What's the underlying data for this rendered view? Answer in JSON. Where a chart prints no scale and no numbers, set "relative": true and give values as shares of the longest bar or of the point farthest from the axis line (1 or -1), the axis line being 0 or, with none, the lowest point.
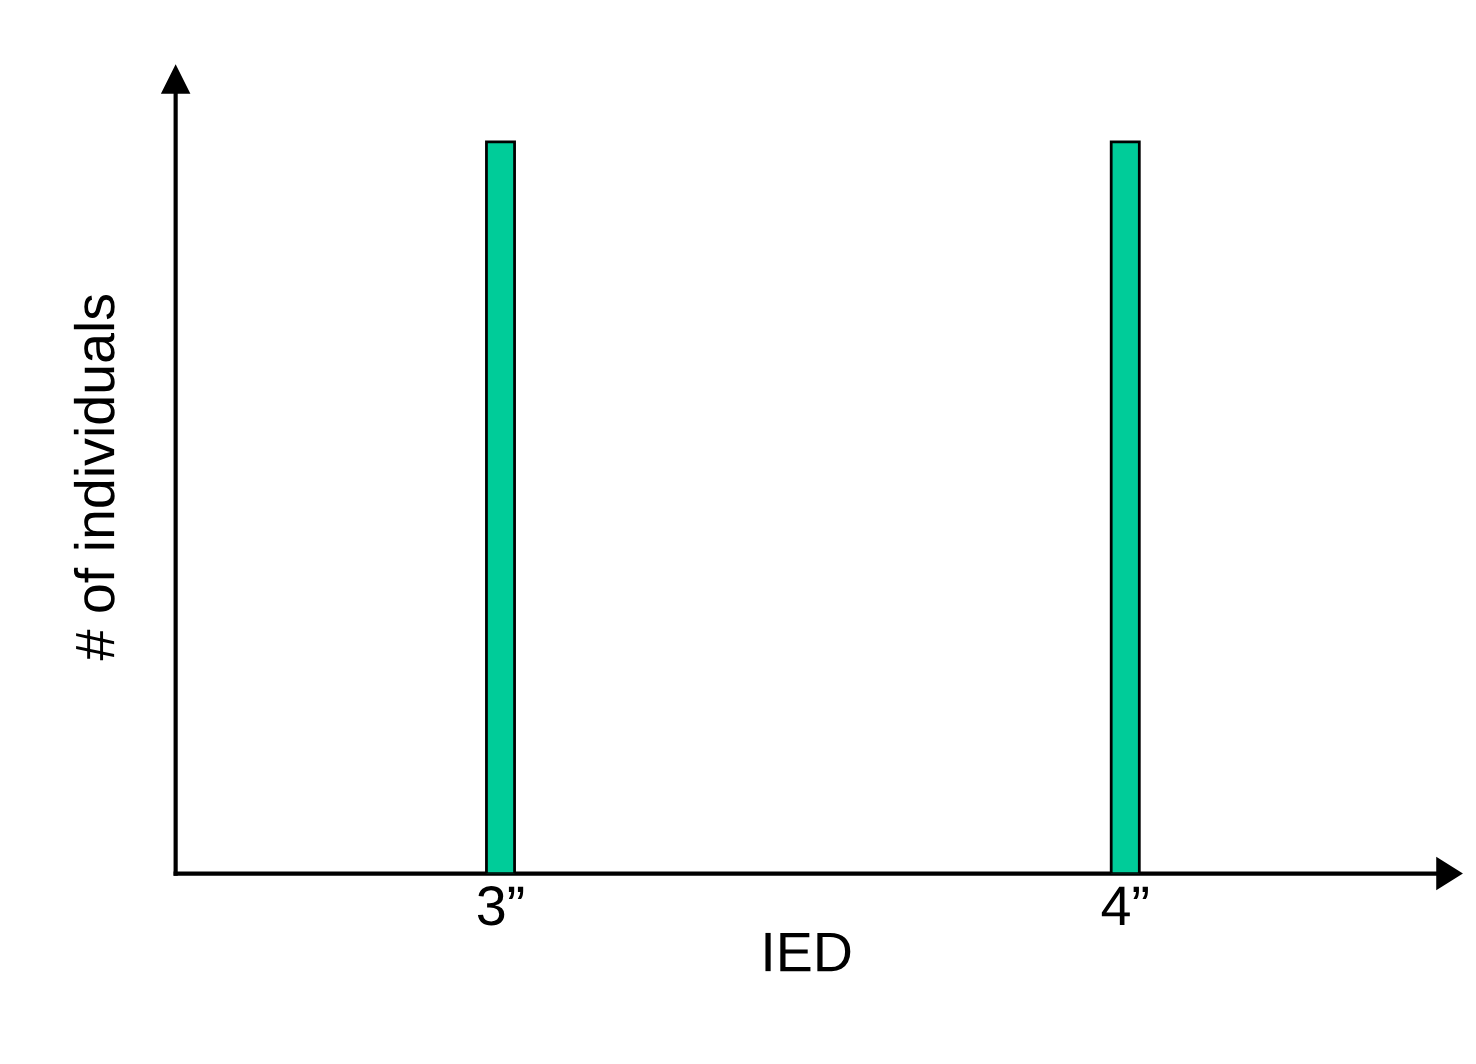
{
  "chart_data": {
    "type": "bar",
    "xlabel": "IED",
    "ylabel": "# of individuals",
    "categories": [
      "3”",
      "4”"
    ],
    "values": [
      1,
      1
    ],
    "color": "#00cc99",
    "relative": true,
    "grid": false,
    "legend": false
  }
}
